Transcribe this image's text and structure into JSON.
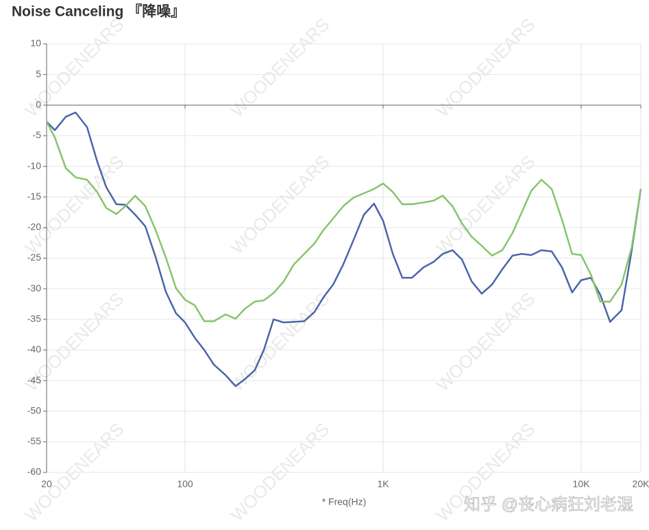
{
  "chart_data": {
    "type": "line",
    "title": "Noise Canceling 『降噪』",
    "x_label": "* Freq(Hz)",
    "watermark": "WOODENEARS",
    "credit": "知乎 @丧心病狂刘老湿",
    "x_scale": "log",
    "grid": true,
    "xlim": [
      20,
      20000
    ],
    "xticks": [
      20,
      100,
      {
        "value": 1000,
        "label": "1K"
      },
      {
        "value": 10000,
        "label": "10K"
      },
      {
        "value": 20000,
        "label": "20K"
      }
    ],
    "ylim": [
      -60,
      10
    ],
    "yticks": [
      -60,
      -55,
      -50,
      -45,
      -40,
      -35,
      -30,
      -25,
      -20,
      -15,
      -10,
      -5,
      0,
      5,
      10
    ],
    "x": [
      20,
      22,
      25,
      28,
      32,
      36,
      40,
      45,
      50,
      56,
      63,
      71,
      80,
      90,
      100,
      112,
      125,
      140,
      160,
      180,
      200,
      225,
      250,
      280,
      315,
      355,
      400,
      450,
      500,
      560,
      630,
      710,
      800,
      900,
      1000,
      1120,
      1250,
      1400,
      1600,
      1800,
      2000,
      2240,
      2500,
      2800,
      3150,
      3550,
      4000,
      4500,
      5000,
      5600,
      6300,
      7100,
      8000,
      9000,
      10000,
      11200,
      12500,
      14000,
      16000,
      18000,
      20000
    ],
    "series": [
      {
        "color": "#4b64a9",
        "values": [
          -2.7,
          -4.1,
          -1.9,
          -1.2,
          -3.6,
          -9.2,
          -13.4,
          -16.2,
          -16.3,
          -17.9,
          -19.8,
          -24.8,
          -30.5,
          -34,
          -35.5,
          -38,
          -40,
          -42.4,
          -44.1,
          -45.9,
          -44.8,
          -43.3,
          -40,
          -35,
          -35.5,
          -35.4,
          -35.3,
          -33.8,
          -31.4,
          -29.3,
          -26,
          -22,
          -17.9,
          -16.1,
          -18.9,
          -24.3,
          -28.2,
          -28.2,
          -26.5,
          -25.6,
          -24.3,
          -23.7,
          -25.2,
          -28.8,
          -30.8,
          -29.3,
          -26.8,
          -24.6,
          -24.3,
          -24.5,
          -23.7,
          -23.9,
          -26.5,
          -30.6,
          -28.6,
          -28.2,
          -31,
          -35.4,
          -33.5,
          -23.7,
          -13.7
        ]
      },
      {
        "color": "#86c46b",
        "values": [
          -2.7,
          -5.3,
          -10.3,
          -11.8,
          -12.2,
          -14.2,
          -16.8,
          -17.8,
          -16.5,
          -14.8,
          -16.5,
          -20.4,
          -24.9,
          -29.9,
          -31.8,
          -32.7,
          -35.3,
          -35.3,
          -34.2,
          -34.9,
          -33.3,
          -32.1,
          -31.9,
          -30.7,
          -28.8,
          -26,
          -24.3,
          -22.6,
          -20.4,
          -18.5,
          -16.5,
          -15.1,
          -14.4,
          -13.7,
          -12.8,
          -14.2,
          -16.2,
          -16.2,
          -15.9,
          -15.6,
          -14.8,
          -16.5,
          -19.3,
          -21.5,
          -23,
          -24.6,
          -23.7,
          -20.9,
          -17.6,
          -14,
          -12.2,
          -13.7,
          -18.7,
          -24.3,
          -24.5,
          -27.7,
          -32.1,
          -32.1,
          -29.3,
          -23.2,
          -13.7
        ]
      }
    ]
  }
}
